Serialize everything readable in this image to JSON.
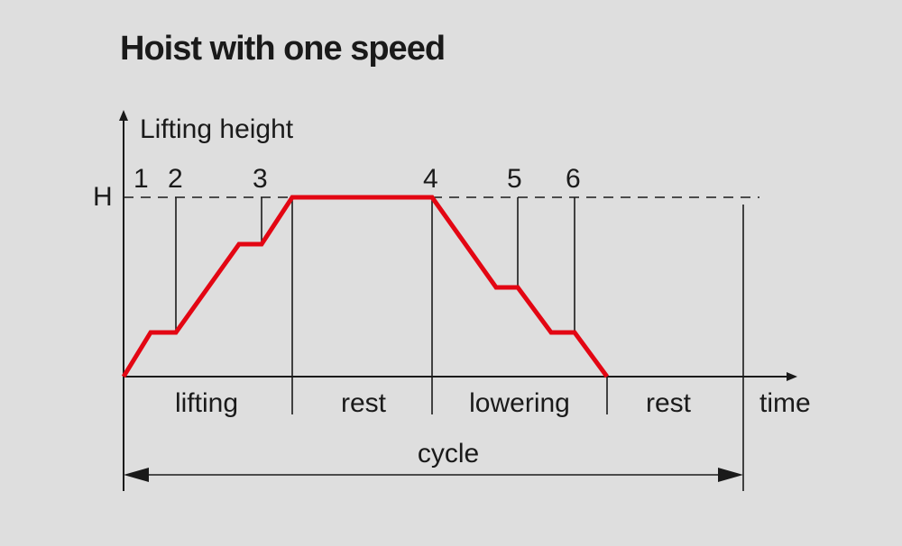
{
  "title": "Hoist with one speed",
  "y_axis_label": "Lifting height",
  "x_axis_label": "time",
  "height_marker": "H",
  "points": [
    "1",
    "2",
    "3",
    "4",
    "5",
    "6"
  ],
  "phases": [
    "lifting",
    "rest",
    "lowering",
    "rest"
  ],
  "cycle_label": "cycle",
  "colors": {
    "curve": "#e30613",
    "lines": "#1a1a1a",
    "background": "#dedede"
  }
}
